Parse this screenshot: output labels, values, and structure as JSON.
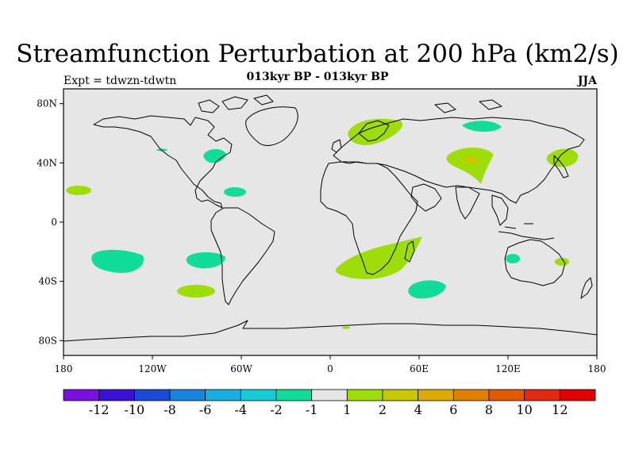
{
  "header": {
    "title": "Streamfunction Perturbation at 200 hPa (km2/s)",
    "experiment": "Expt = tdwzn-tdwtn",
    "period": "013kyr BP - 013kyr BP",
    "season": "JJA"
  },
  "axes": {
    "lat_ticks": [
      "80N",
      "40N",
      "0",
      "40S",
      "80S"
    ],
    "lat_values": [
      80,
      40,
      0,
      -40,
      -80
    ],
    "lon_ticks": [
      "180",
      "120W",
      "60W",
      "0",
      "60E",
      "120E",
      "180"
    ],
    "lon_values": [
      -180,
      -120,
      -60,
      0,
      60,
      120,
      180
    ],
    "lon_range": [
      -180,
      180
    ],
    "lat_range": [
      -90,
      90
    ]
  },
  "colorbar": {
    "colors": [
      "#7a10e0",
      "#3a10d8",
      "#1a4ad8",
      "#1a84dc",
      "#18aee0",
      "#14ccd4",
      "#12dc9a",
      "#e6e6e6",
      "#9edc0a",
      "#c8c800",
      "#dcaa00",
      "#e08000",
      "#e05a00",
      "#e02a10",
      "#e00000"
    ],
    "labels": [
      "-12",
      "-10",
      "-8",
      "-6",
      "-4",
      "-2",
      "-1",
      "1",
      "2",
      "4",
      "6",
      "8",
      "10",
      "12"
    ]
  },
  "colors": {
    "background": "#e6e6e6",
    "negative": "#12dc9a",
    "positive": "#9edc0a",
    "strong_positive": "#c8c800"
  }
}
